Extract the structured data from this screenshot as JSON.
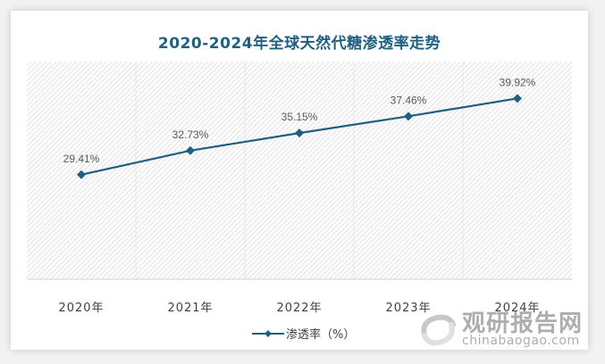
{
  "chart_data": {
    "type": "line",
    "title": "2020-2024年全球天然代糖渗透率走势",
    "categories": [
      "2020年",
      "2021年",
      "2022年",
      "2023年",
      "2024年"
    ],
    "series": [
      {
        "name": "渗透率（%）",
        "values": [
          29.41,
          32.73,
          35.15,
          37.46,
          39.92
        ],
        "color": "#1f5f7f"
      }
    ],
    "data_labels": [
      "29.41%",
      "32.73%",
      "35.15%",
      "37.46%",
      "39.92%"
    ],
    "xlabel": "",
    "ylabel": "",
    "grid": "vertical",
    "legend_position": "bottom"
  },
  "title": "2020-2024年全球天然代糖渗透率走势",
  "legend": {
    "label": "渗透率（%）"
  },
  "watermark": {
    "brand": "观研报告网",
    "url": "chinabaogao.com"
  },
  "colors": {
    "line": "#1f5f7f",
    "title": "#1f5f7f",
    "label": "#595959"
  }
}
